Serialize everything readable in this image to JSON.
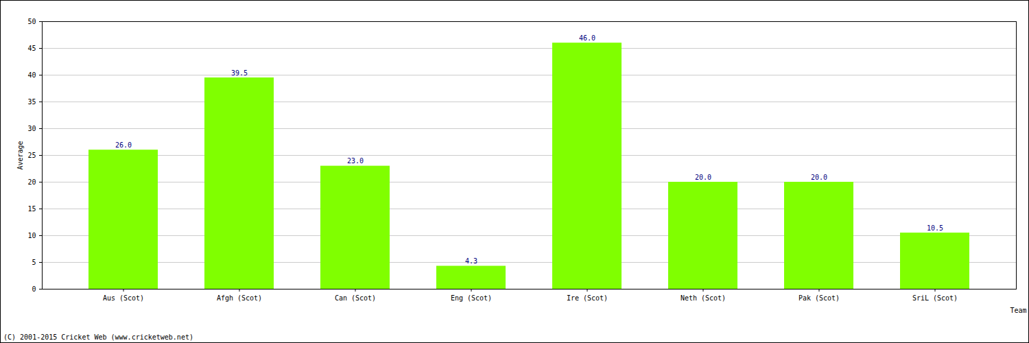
{
  "chart_data": {
    "type": "bar",
    "categories": [
      "Aus (Scot)",
      "Afgh (Scot)",
      "Can (Scot)",
      "Eng (Scot)",
      "Ire (Scot)",
      "Neth (Scot)",
      "Pak (Scot)",
      "SriL (Scot)"
    ],
    "values": [
      26.0,
      39.5,
      23.0,
      4.3,
      46.0,
      20.0,
      20.0,
      10.5
    ],
    "value_labels": [
      "26.0",
      "39.5",
      "23.0",
      "4.3",
      "46.0",
      "20.0",
      "20.0",
      "10.5"
    ],
    "data_labels": true,
    "color": "#80ff00",
    "x_label": "Team",
    "y_label": "Average",
    "ylim": [
      0,
      50
    ],
    "yticks": [
      0,
      5,
      10,
      15,
      20,
      25,
      30,
      35,
      40,
      45,
      50
    ],
    "grid": true,
    "caption": "(C) 2001-2015 Cricket Web (www.cricketweb.net)"
  }
}
